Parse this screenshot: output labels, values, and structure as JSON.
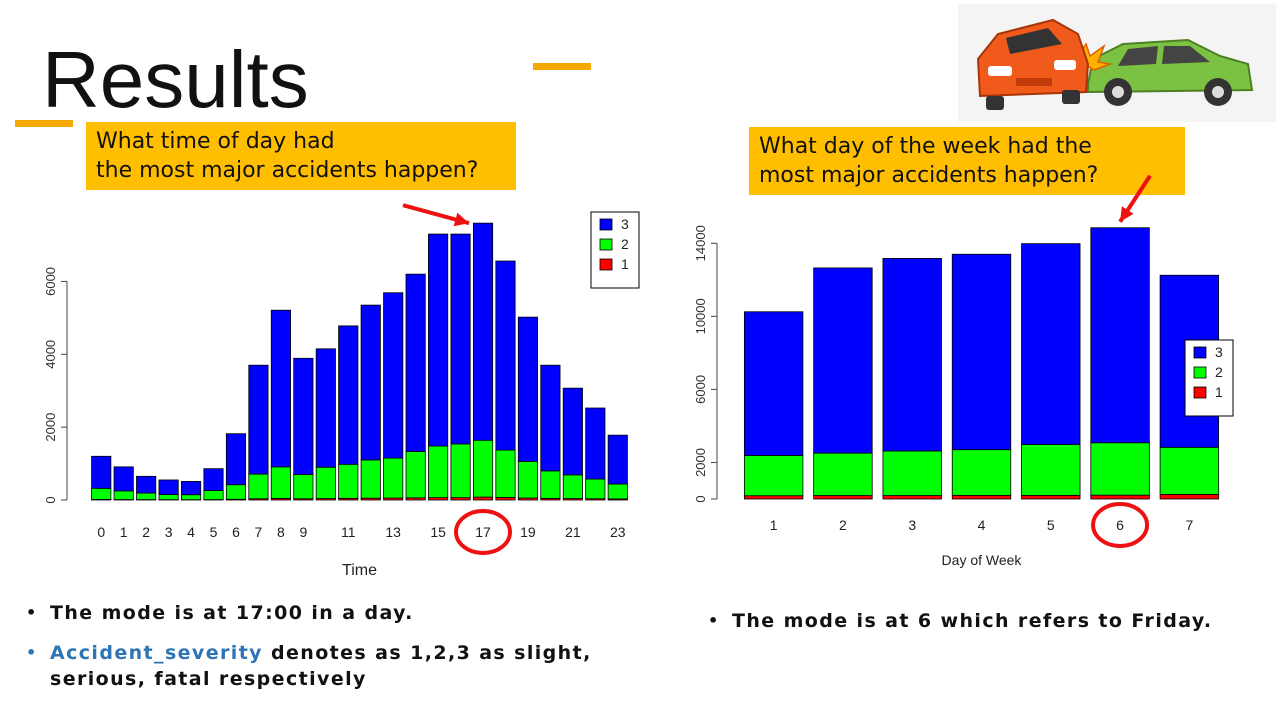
{
  "slide": {
    "title": "Results",
    "accent_color": "#f5a800",
    "callout_color": "#ffbf00"
  },
  "callouts": {
    "left": "What time of day had\nthe most major accidents happen?",
    "right": "What day of the week had the\nmost major accidents happen?"
  },
  "bullets": {
    "left_1": "The mode is at 17:00 in a day.",
    "left_2_keyword": "Accident_severity",
    "left_2_rest": " denotes as 1,2,3 as slight, serious, fatal respectively",
    "right_1": "The mode is at 6 which refers to Friday."
  },
  "illustration": {
    "icon": "car-crash-icon"
  },
  "chart_data": [
    {
      "type": "bar",
      "stacked": true,
      "xlabel": "Time",
      "ylabel": "",
      "title": "",
      "ylim": [
        0,
        7000
      ],
      "yticks": [
        0,
        2000,
        4000,
        6000
      ],
      "categories": [
        "0",
        "1",
        "2",
        "3",
        "4",
        "5",
        "6",
        "7",
        "8",
        "9",
        "10",
        "11",
        "12",
        "13",
        "14",
        "15",
        "16",
        "17",
        "18",
        "19",
        "20",
        "21",
        "22",
        "23"
      ],
      "shown_tick_labels": [
        "0",
        "1",
        "2",
        "3",
        "4",
        "5",
        "6",
        "7",
        "8",
        "9",
        "11",
        "13",
        "15",
        "17",
        "19",
        "21",
        "23"
      ],
      "highlight_category": "17",
      "legend": {
        "position": "top-right",
        "entries": [
          "3",
          "2",
          "1"
        ]
      },
      "series": [
        {
          "name": "1",
          "color": "#ff0000",
          "values": [
            15,
            12,
            10,
            8,
            8,
            10,
            20,
            35,
            45,
            35,
            40,
            45,
            50,
            55,
            60,
            65,
            65,
            80,
            70,
            55,
            45,
            40,
            35,
            30
          ]
        },
        {
          "name": "2",
          "color": "#00ff00",
          "values": [
            305,
            238,
            180,
            142,
            137,
            250,
            400,
            675,
            865,
            665,
            860,
            935,
            1050,
            1095,
            1270,
            1415,
            1475,
            1560,
            1300,
            1005,
            755,
            650,
            540,
            410
          ]
        },
        {
          "name": "3",
          "color": "#0000ff",
          "values": [
            880,
            660,
            460,
            400,
            365,
            600,
            1400,
            2990,
            4300,
            3190,
            3250,
            3800,
            4250,
            4540,
            4870,
            5820,
            5760,
            5960,
            5190,
            3960,
            2900,
            2380,
            1950,
            1340
          ]
        }
      ]
    },
    {
      "type": "bar",
      "stacked": true,
      "xlabel": "Day of Week",
      "ylabel": "",
      "title": "",
      "ylim": [
        0,
        15000
      ],
      "yticks": [
        0,
        2000,
        6000,
        10000,
        14000
      ],
      "categories": [
        "1",
        "2",
        "3",
        "4",
        "5",
        "6",
        "7"
      ],
      "highlight_category": "6",
      "legend": {
        "position": "right",
        "entries": [
          "3",
          "2",
          "1"
        ]
      },
      "series": [
        {
          "name": "1",
          "color": "#ff0000",
          "values": [
            180,
            190,
            190,
            200,
            200,
            210,
            250
          ]
        },
        {
          "name": "2",
          "color": "#00ff00",
          "values": [
            2200,
            2320,
            2440,
            2500,
            2780,
            2870,
            2580
          ]
        },
        {
          "name": "3",
          "color": "#0000ff",
          "values": [
            7870,
            10140,
            10540,
            10700,
            11000,
            11770,
            9420
          ]
        }
      ]
    }
  ]
}
